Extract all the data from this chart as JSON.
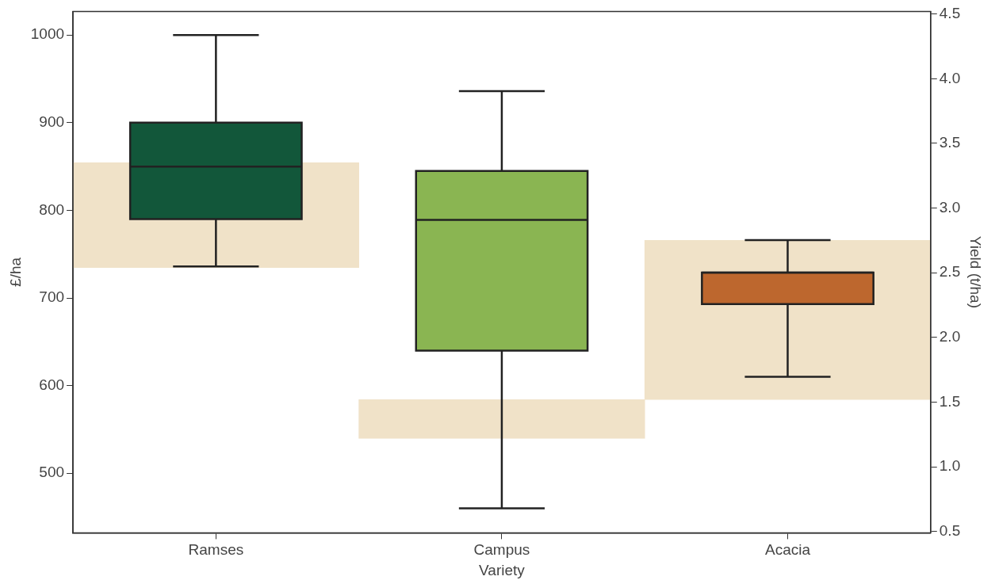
{
  "chart_data": {
    "type": "box",
    "xlabel": "Variety",
    "ylabel": "£/ha",
    "y2label": "Yield (t/ha)",
    "categories": [
      "Ramses",
      "Campus",
      "Acacia"
    ],
    "colors": [
      "#12573a",
      "#8ab552",
      "#bd672e"
    ],
    "boxes": [
      {
        "low": 736,
        "q1": 790,
        "median": 850,
        "q3": 900,
        "high": 1000
      },
      {
        "low": 460,
        "q1": 640,
        "median": 789,
        "q3": 845,
        "high": 936
      },
      {
        "low": 610,
        "q1": 693,
        "median": 729,
        "q3": 729,
        "high": 766
      }
    ],
    "series": [
      {
        "type": "bar",
        "axis": "y2",
        "color": "#f0e2c8",
        "values": [
          0.81,
          0.3,
          1.23
        ],
        "base": [
          2.54,
          1.22,
          1.52
        ]
      }
    ],
    "ylim": [
      432,
      1027
    ],
    "yticks": [
      500,
      600,
      700,
      800,
      900,
      1000
    ],
    "y2lim": [
      0.49,
      4.52
    ],
    "y2ticks": [
      0.5,
      {
        "value": 1,
        "label": "1.0"
      },
      1.5,
      {
        "value": 2,
        "label": "2.0"
      },
      2.5,
      {
        "value": 3,
        "label": "3.0"
      },
      3.5,
      {
        "value": 4,
        "label": "4.0"
      },
      4.5
    ],
    "grid": false,
    "legend": false
  }
}
